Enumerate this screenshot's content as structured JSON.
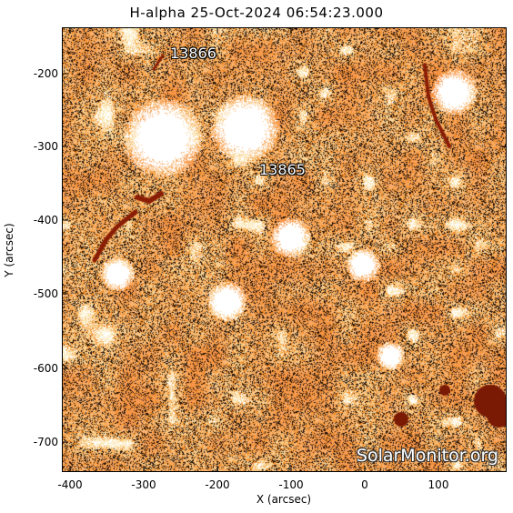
{
  "title": "H-alpha 25-Oct-2024 06:54:23.000",
  "axes": {
    "x_label": "X (arcsec)",
    "y_label": "Y (arcsec)",
    "x_ticks": [
      "-400",
      "-300",
      "-200",
      "-100",
      "0",
      "100"
    ],
    "y_ticks": [
      "-200",
      "-300",
      "-400",
      "-500",
      "-600",
      "-700"
    ]
  },
  "regions": [
    {
      "label": "13866"
    },
    {
      "label": "13865"
    }
  ],
  "watermark": "SolarMonitor.org",
  "colors": {
    "chromosphere": "#f07a1c",
    "dark": "#1a0d05",
    "plage": "#ffffff",
    "filament": "#8a1e05"
  }
}
